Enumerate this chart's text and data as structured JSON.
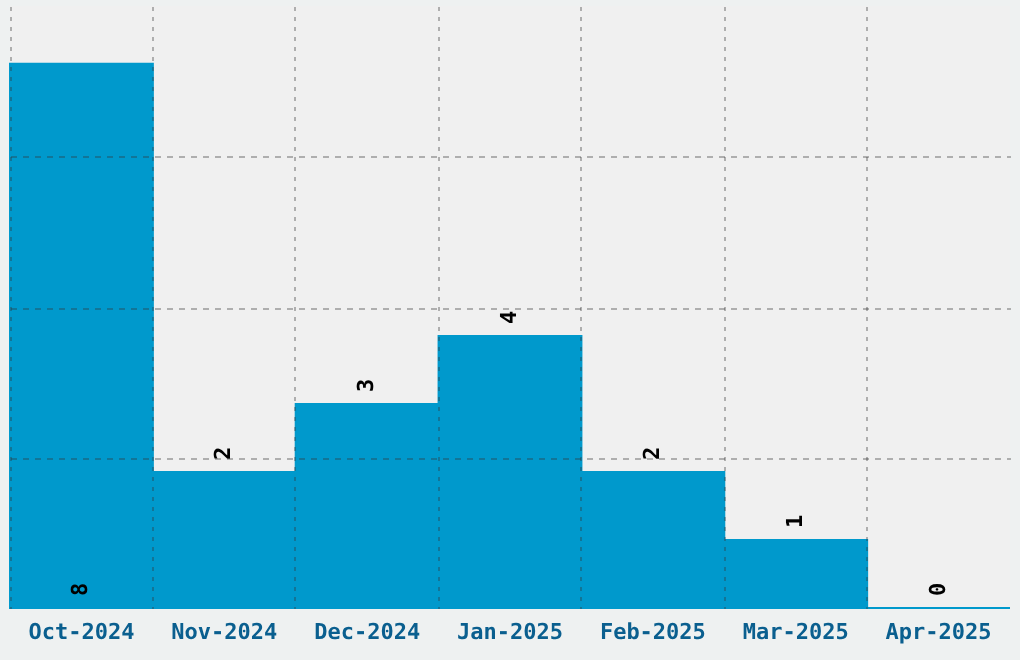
{
  "chart_data": {
    "type": "bar",
    "categories": [
      "Oct-2024",
      "Nov-2024",
      "Dec-2024",
      "Jan-2025",
      "Feb-2025",
      "Mar-2025",
      "Apr-2025"
    ],
    "values": [
      8,
      2,
      3,
      4,
      2,
      1,
      0
    ],
    "color": "#0099cc",
    "ylim": [
      0,
      8.85
    ],
    "yticks": [
      {
        "value": 2.2125,
        "label": null
      },
      {
        "value": 4.425,
        "label": null
      },
      {
        "value": 6.6375,
        "label": null
      }
    ],
    "grid": true,
    "data_labels": true
  }
}
